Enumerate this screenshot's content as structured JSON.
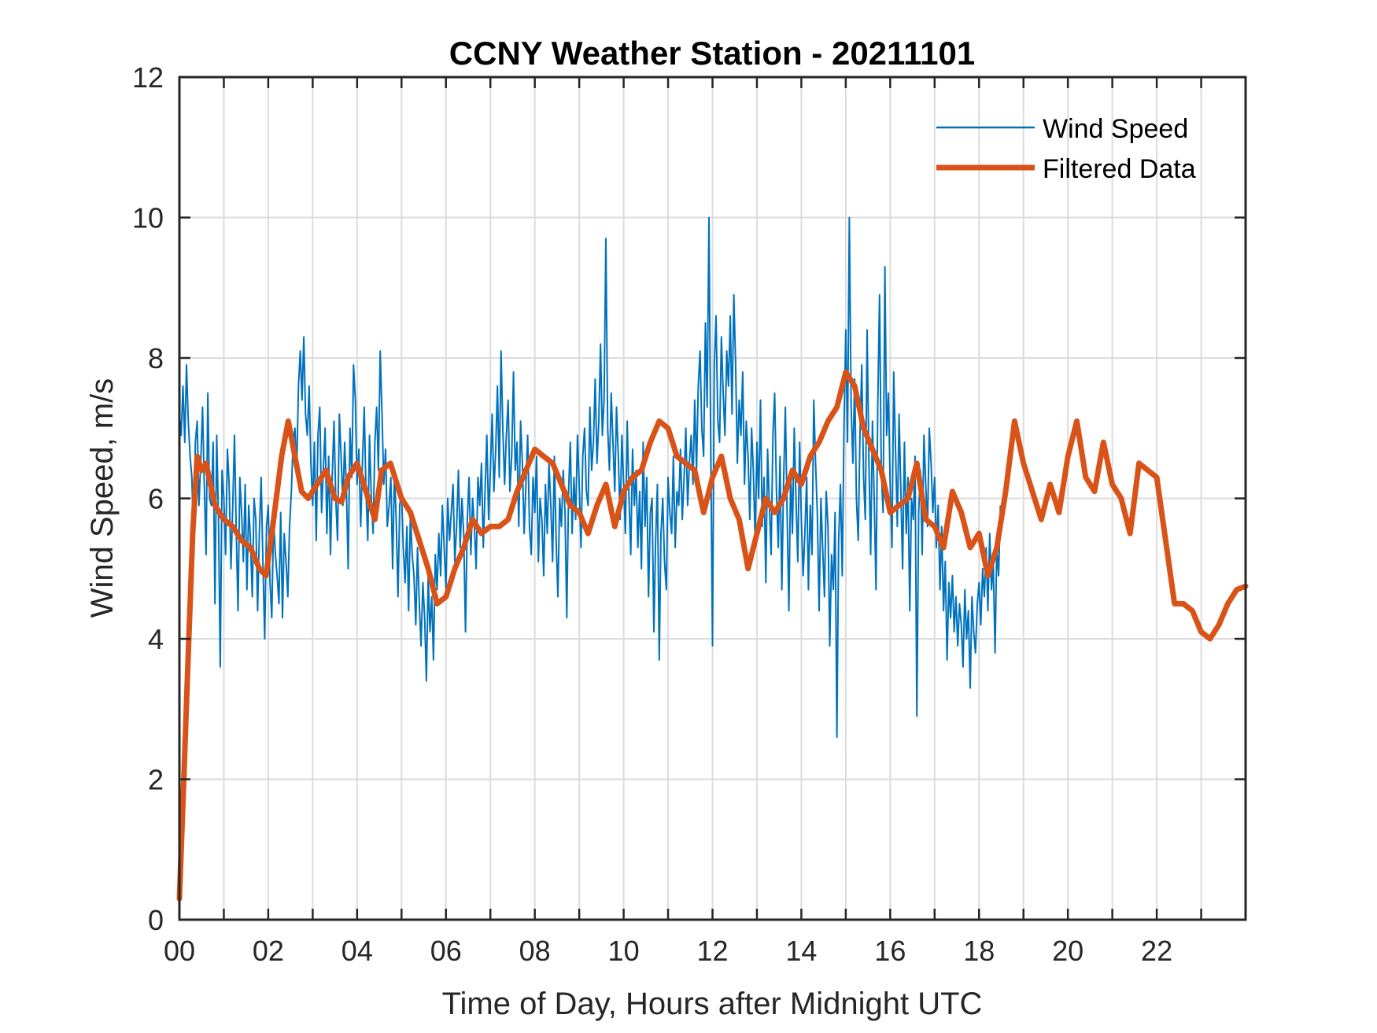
{
  "chart_data": {
    "type": "line",
    "title": "CCNY Weather Station - 20211101",
    "xlabel": "Time of Day, Hours after Midnight UTC",
    "ylabel": "Wind Speed, m/s",
    "xlim": [
      0,
      24
    ],
    "ylim": [
      0,
      12
    ],
    "xticks": [
      0,
      1,
      2,
      3,
      4,
      5,
      6,
      7,
      8,
      9,
      10,
      11,
      12,
      13,
      14,
      15,
      16,
      17,
      18,
      19,
      20,
      21,
      22,
      23
    ],
    "xtick_labels": [
      "00",
      "",
      "02",
      "",
      "04",
      "",
      "06",
      "",
      "08",
      "",
      "10",
      "",
      "12",
      "",
      "14",
      "",
      "16",
      "",
      "18",
      "",
      "20",
      "",
      "22",
      ""
    ],
    "yticks": [
      0,
      2,
      4,
      6,
      8,
      10,
      12
    ],
    "ytick_labels": [
      "0",
      "2",
      "4",
      "6",
      "8",
      "10",
      "12"
    ],
    "grid": true,
    "legend_position": "top-right",
    "series": [
      {
        "name": "Wind Speed",
        "color": "#0072BD",
        "x_step_hours": 0.04,
        "values": [
          7.2,
          6.9,
          7.6,
          6.8,
          7.9,
          7.1,
          6.6,
          6.3,
          5.4,
          6.8,
          7.1,
          5.9,
          6.5,
          7.3,
          6.2,
          5.2,
          7.5,
          6.0,
          5.9,
          6.8,
          4.5,
          6.9,
          5.7,
          3.6,
          6.4,
          6.0,
          5.2,
          6.7,
          6.2,
          5.0,
          5.9,
          6.9,
          5.5,
          4.4,
          6.3,
          5.8,
          5.1,
          6.2,
          4.7,
          5.9,
          5.4,
          4.6,
          6.0,
          5.7,
          4.4,
          5.5,
          6.3,
          5.1,
          4.0,
          5.6,
          5.9,
          4.8,
          4.3,
          5.7,
          5.2,
          4.9,
          4.5,
          5.8,
          4.3,
          5.5,
          5.1,
          4.6,
          5.6,
          6.1,
          6.8,
          7.0,
          6.4,
          7.6,
          8.1,
          7.4,
          8.3,
          7.2,
          6.9,
          7.6,
          6.5,
          5.9,
          6.8,
          5.4,
          6.9,
          7.3,
          5.8,
          6.4,
          7.0,
          5.5,
          6.6,
          5.2,
          6.3,
          7.1,
          6.0,
          5.4,
          7.2,
          6.6,
          5.9,
          6.8,
          6.1,
          5.0,
          7.0,
          6.3,
          7.9,
          7.4,
          6.2,
          6.7,
          5.6,
          6.5,
          7.3,
          6.1,
          5.4,
          6.9,
          6.0,
          5.5,
          6.8,
          7.3,
          6.4,
          8.1,
          7.2,
          6.2,
          6.7,
          5.6,
          5.9,
          6.3,
          5.0,
          6.4,
          5.7,
          4.6,
          5.9,
          6.1,
          5.3,
          4.8,
          5.6,
          4.4,
          5.8,
          5.2,
          4.9,
          4.2,
          5.3,
          4.5,
          3.9,
          4.8,
          4.3,
          3.4,
          4.9,
          4.1,
          4.6,
          3.7,
          5.2,
          4.7,
          5.5,
          4.9,
          5.9,
          5.3,
          4.7,
          6.0,
          5.4,
          5.8,
          6.2,
          5.1,
          5.6,
          6.4,
          5.3,
          6.0,
          5.5,
          4.1,
          5.7,
          6.3,
          5.2,
          6.0,
          5.6,
          5.0,
          6.3,
          5.9,
          6.5,
          5.3,
          6.1,
          6.9,
          5.7,
          6.4,
          7.2,
          6.1,
          6.7,
          7.6,
          6.3,
          8.1,
          7.0,
          6.2,
          6.9,
          7.4,
          6.1,
          6.6,
          7.8,
          6.4,
          6.8,
          5.6,
          7.1,
          6.5,
          5.5,
          6.2,
          6.9,
          5.6,
          5.2,
          6.3,
          5.8,
          6.6,
          5.1,
          6.0,
          5.7,
          4.9,
          6.2,
          5.5,
          6.5,
          5.9,
          5.1,
          6.6,
          5.4,
          4.6,
          6.0,
          5.6,
          6.4,
          5.8,
          4.3,
          6.1,
          6.8,
          5.5,
          6.3,
          5.7,
          6.9,
          6.2,
          5.3,
          6.6,
          7.0,
          6.1,
          5.9,
          7.3,
          6.4,
          6.8,
          7.7,
          6.5,
          7.1,
          8.2,
          6.9,
          7.4,
          9.7,
          7.0,
          6.4,
          7.5,
          6.8,
          6.1,
          7.3,
          6.6,
          5.7,
          6.9,
          6.2,
          5.5,
          7.1,
          6.0,
          5.2,
          6.7,
          5.9,
          6.4,
          5.3,
          6.1,
          5.0,
          6.8,
          5.6,
          6.3,
          4.6,
          5.8,
          6.0,
          4.1,
          5.4,
          6.2,
          3.7,
          5.5,
          6.0,
          5.1,
          4.7,
          6.3,
          5.8,
          5.5,
          6.6,
          5.3,
          6.1,
          5.9,
          6.7,
          5.7,
          6.3,
          7.0,
          5.9,
          6.5,
          6.9,
          6.2,
          7.4,
          6.4,
          7.6,
          8.1,
          7.0,
          6.6,
          8.5,
          7.3,
          10.0,
          6.8,
          3.9,
          7.9,
          8.6,
          7.1,
          6.8,
          8.3,
          7.5,
          6.9,
          8.1,
          7.6,
          8.6,
          7.2,
          8.9,
          7.9,
          6.5,
          7.4,
          6.9,
          7.8,
          6.2,
          7.1,
          6.6,
          5.7,
          7.0,
          6.4,
          5.4,
          6.8,
          6.0,
          7.4,
          5.6,
          6.3,
          4.8,
          6.7,
          5.9,
          5.2,
          6.9,
          7.5,
          6.1,
          5.3,
          6.6,
          4.7,
          6.2,
          7.3,
          5.8,
          4.4,
          6.4,
          5.5,
          7.0,
          6.0,
          5.1,
          6.8,
          5.7,
          4.9,
          5.5,
          6.3,
          4.7,
          5.9,
          5.2,
          7.4,
          6.5,
          5.8,
          4.4,
          6.0,
          5.3,
          4.6,
          6.1,
          5.6,
          3.9,
          5.2,
          4.7,
          5.8,
          2.6,
          5.4,
          6.2,
          4.9,
          7.0,
          8.4,
          6.8,
          10.0,
          7.3,
          6.5,
          7.7,
          6.0,
          5.4,
          6.9,
          7.9,
          6.3,
          5.7,
          8.4,
          6.6,
          5.2,
          7.1,
          6.0,
          4.7,
          7.3,
          8.9,
          6.4,
          5.8,
          9.3,
          6.9,
          7.5,
          6.2,
          5.3,
          7.8,
          6.7,
          5.6,
          7.2,
          6.1,
          5.0,
          6.8,
          5.5,
          6.3,
          4.4,
          6.0,
          5.7,
          6.6,
          2.9,
          5.8,
          6.4,
          5.2,
          6.9,
          6.2,
          5.6,
          7.0,
          6.5,
          5.8,
          6.3,
          5.3,
          5.9,
          4.7,
          5.6,
          4.4,
          5.1,
          3.7,
          4.8,
          4.3,
          4.9,
          4.1,
          4.6,
          3.9,
          4.5,
          4.2,
          3.6,
          4.7,
          4.0,
          4.4,
          3.3,
          4.6,
          4.1,
          3.8,
          4.5,
          4.8,
          4.2,
          5.0,
          4.6,
          5.3,
          4.4,
          5.5,
          4.7,
          5.1,
          3.8,
          5.3,
          4.9,
          5.9
        ]
      },
      {
        "name": "Filtered Data",
        "color": "#D95319",
        "x": [
          0.0,
          0.1,
          0.2,
          0.3,
          0.4,
          0.5,
          0.6,
          0.7,
          0.8,
          0.9,
          1.0,
          1.2,
          1.4,
          1.6,
          1.8,
          1.95,
          2.1,
          2.3,
          2.45,
          2.6,
          2.75,
          2.9,
          3.1,
          3.3,
          3.5,
          3.65,
          3.8,
          4.0,
          4.2,
          4.4,
          4.55,
          4.75,
          5.0,
          5.2,
          5.4,
          5.6,
          5.8,
          6.0,
          6.2,
          6.4,
          6.6,
          6.8,
          7.0,
          7.2,
          7.4,
          7.6,
          7.8,
          8.0,
          8.2,
          8.4,
          8.6,
          8.8,
          9.0,
          9.2,
          9.4,
          9.6,
          9.8,
          10.0,
          10.2,
          10.4,
          10.6,
          10.8,
          11.0,
          11.2,
          11.4,
          11.6,
          11.8,
          12.0,
          12.2,
          12.4,
          12.6,
          12.8,
          13.0,
          13.2,
          13.4,
          13.6,
          13.8,
          14.0,
          14.2,
          14.4,
          14.6,
          14.8,
          15.0,
          15.2,
          15.4,
          15.6,
          15.8,
          16.0,
          16.2,
          16.4,
          16.6,
          16.8,
          17.0,
          17.2,
          17.4,
          17.6,
          17.8,
          18.0,
          18.2,
          18.4,
          18.6,
          18.8,
          19.0,
          19.2,
          19.4,
          19.6,
          19.8,
          20.0,
          20.2,
          20.4,
          20.6,
          20.8,
          21.0,
          21.2,
          21.4,
          21.6,
          21.8,
          22.0,
          22.2,
          22.4,
          22.6,
          22.8,
          23.0,
          23.2,
          23.4,
          23.6,
          23.8,
          24.0
        ],
        "values": [
          0.3,
          2.0,
          3.8,
          5.5,
          6.6,
          6.4,
          6.5,
          6.2,
          5.9,
          5.8,
          5.7,
          5.6,
          5.4,
          5.3,
          5.0,
          4.9,
          5.6,
          6.6,
          7.1,
          6.6,
          6.1,
          6.0,
          6.2,
          6.4,
          6.0,
          5.95,
          6.3,
          6.5,
          6.1,
          5.7,
          6.4,
          6.5,
          6.0,
          5.8,
          5.4,
          5.0,
          4.5,
          4.6,
          5.0,
          5.3,
          5.7,
          5.5,
          5.6,
          5.6,
          5.7,
          6.1,
          6.4,
          6.7,
          6.6,
          6.5,
          6.2,
          5.9,
          5.8,
          5.5,
          5.9,
          6.2,
          5.6,
          6.1,
          6.3,
          6.4,
          6.8,
          7.1,
          7.0,
          6.6,
          6.5,
          6.4,
          5.8,
          6.3,
          6.6,
          6.0,
          5.7,
          5.0,
          5.5,
          6.0,
          5.8,
          6.0,
          6.4,
          6.2,
          6.6,
          6.8,
          7.1,
          7.3,
          7.8,
          7.6,
          7.0,
          6.7,
          6.4,
          5.8,
          5.9,
          6.0,
          6.5,
          5.7,
          5.6,
          5.3,
          6.1,
          5.8,
          5.3,
          5.5,
          4.9,
          5.3,
          6.1,
          7.1,
          6.5,
          6.1,
          5.7,
          6.2,
          5.8,
          6.6,
          7.1,
          6.3,
          6.1,
          6.8,
          6.2,
          6.0,
          5.5,
          6.5,
          6.4,
          6.3,
          5.4,
          4.5,
          4.5,
          4.4,
          4.1,
          4.0,
          4.2,
          4.5,
          4.7,
          4.75
        ]
      }
    ]
  }
}
